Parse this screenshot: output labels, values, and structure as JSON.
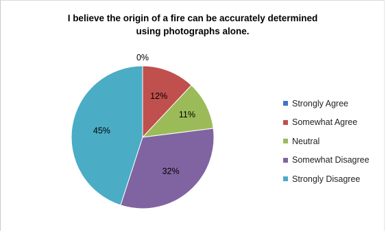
{
  "chart_data": {
    "type": "pie",
    "title": "I believe the origin of a fire can be accurately determined using photographs alone.",
    "title_lines": [
      "I believe the origin of a fire can be accurately determined",
      "using photographs alone."
    ],
    "categories": [
      "Strongly Agree",
      "Somewhat Agree",
      "Neutral",
      "Somewhat Disagree",
      "Strongly Disagree"
    ],
    "values": [
      0,
      12,
      11,
      32,
      45
    ],
    "labels": [
      "0%",
      "12%",
      "11%",
      "32%",
      "45%"
    ],
    "colors": [
      "#4472c4",
      "#c0504d",
      "#9bbb59",
      "#8064a2",
      "#4bacc6"
    ],
    "legend_position": "right"
  }
}
